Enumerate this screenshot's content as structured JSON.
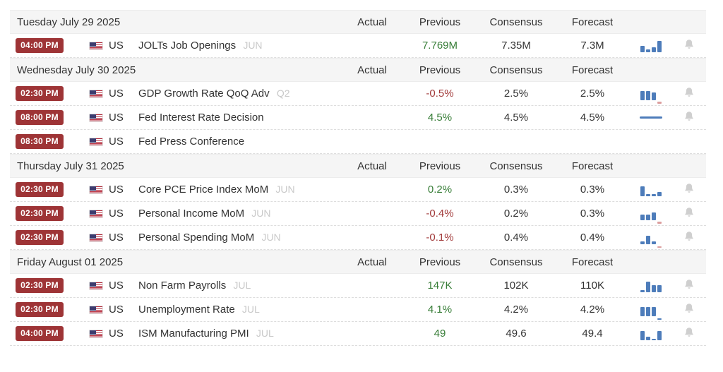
{
  "colors": {
    "badge-bg": "#9e3436",
    "positive": "#377d37",
    "negative": "#a23b3b",
    "bar-blue": "#4d7cba",
    "bar-red": "#dc9e9e",
    "bell-gray": "#cfcfcf",
    "header-bg": "#f5f5f5"
  },
  "columns": [
    "Actual",
    "Previous",
    "Consensus",
    "Forecast"
  ],
  "days": [
    {
      "date": "Tuesday July 29 2025",
      "events": [
        {
          "time": "04:00 PM",
          "country": "US",
          "name": "JOLTs Job Openings",
          "period": "JUN",
          "actual": "",
          "previous": "7.769M",
          "previous_tone": "pos",
          "consensus": "7.35M",
          "forecast": "7.3M",
          "sparkline": {
            "type": "bars",
            "bars": [
              {
                "h": 9
              },
              {
                "h": 4
              },
              {
                "h": 7
              },
              {
                "h": 16
              }
            ]
          },
          "bell": true
        }
      ]
    },
    {
      "date": "Wednesday July 30 2025",
      "events": [
        {
          "time": "02:30 PM",
          "country": "US",
          "name": "GDP Growth Rate QoQ Adv",
          "period": "Q2",
          "actual": "",
          "previous": "-0.5%",
          "previous_tone": "neg",
          "consensus": "2.5%",
          "forecast": "2.5%",
          "sparkline": {
            "type": "bars",
            "bars": [
              {
                "h": 13
              },
              {
                "h": 13
              },
              {
                "h": 11
              },
              {
                "h": 3,
                "c": "r",
                "neg": true
              }
            ]
          },
          "bell": true
        },
        {
          "time": "08:00 PM",
          "country": "US",
          "name": "Fed Interest Rate Decision",
          "period": "",
          "actual": "",
          "previous": "4.5%",
          "previous_tone": "pos",
          "consensus": "4.5%",
          "forecast": "4.5%",
          "sparkline": {
            "type": "line"
          },
          "bell": true
        },
        {
          "time": "08:30 PM",
          "country": "US",
          "name": "Fed Press Conference",
          "period": "",
          "actual": "",
          "previous": "",
          "previous_tone": "",
          "consensus": "",
          "forecast": "",
          "sparkline": null,
          "bell": false
        }
      ]
    },
    {
      "date": "Thursday July 31 2025",
      "events": [
        {
          "time": "02:30 PM",
          "country": "US",
          "name": "Core PCE Price Index MoM",
          "period": "JUN",
          "actual": "",
          "previous": "0.2%",
          "previous_tone": "pos",
          "consensus": "0.3%",
          "forecast": "0.3%",
          "sparkline": {
            "type": "bars",
            "bars": [
              {
                "h": 14
              },
              {
                "h": 3
              },
              {
                "h": 3
              },
              {
                "h": 6
              }
            ]
          },
          "bell": true
        },
        {
          "time": "02:30 PM",
          "country": "US",
          "name": "Personal Income MoM",
          "period": "JUN",
          "actual": "",
          "previous": "-0.4%",
          "previous_tone": "neg",
          "consensus": "0.2%",
          "forecast": "0.3%",
          "sparkline": {
            "type": "bars",
            "bars": [
              {
                "h": 8
              },
              {
                "h": 8
              },
              {
                "h": 11
              },
              {
                "h": 3,
                "c": "r",
                "neg": true
              }
            ]
          },
          "bell": true
        },
        {
          "time": "02:30 PM",
          "country": "US",
          "name": "Personal Spending MoM",
          "period": "JUN",
          "actual": "",
          "previous": "-0.1%",
          "previous_tone": "neg",
          "consensus": "0.4%",
          "forecast": "0.4%",
          "sparkline": {
            "type": "bars",
            "bars": [
              {
                "h": 4
              },
              {
                "h": 12
              },
              {
                "h": 4
              },
              {
                "h": 2,
                "c": "r",
                "neg": true
              }
            ]
          },
          "bell": true
        }
      ]
    },
    {
      "date": "Friday August 01 2025",
      "events": [
        {
          "time": "02:30 PM",
          "country": "US",
          "name": "Non Farm Payrolls",
          "period": "JUL",
          "actual": "",
          "previous": "147K",
          "previous_tone": "pos",
          "consensus": "102K",
          "forecast": "110K",
          "sparkline": {
            "type": "bars",
            "bars": [
              {
                "h": 3
              },
              {
                "h": 15
              },
              {
                "h": 10
              },
              {
                "h": 10
              }
            ]
          },
          "bell": true
        },
        {
          "time": "02:30 PM",
          "country": "US",
          "name": "Unemployment Rate",
          "period": "JUL",
          "actual": "",
          "previous": "4.1%",
          "previous_tone": "pos",
          "consensus": "4.2%",
          "forecast": "4.2%",
          "sparkline": {
            "type": "bars",
            "bars": [
              {
                "h": 13
              },
              {
                "h": 13
              },
              {
                "h": 13
              },
              {
                "h": 2,
                "neg": true
              }
            ]
          },
          "bell": true
        },
        {
          "time": "04:00 PM",
          "country": "US",
          "name": "ISM Manufacturing PMI",
          "period": "JUL",
          "actual": "",
          "previous": "49",
          "previous_tone": "pos",
          "consensus": "49.6",
          "forecast": "49.4",
          "sparkline": {
            "type": "bars",
            "bars": [
              {
                "h": 13
              },
              {
                "h": 5
              },
              {
                "h": 2
              },
              {
                "h": 13
              }
            ]
          },
          "bell": true
        }
      ]
    }
  ]
}
